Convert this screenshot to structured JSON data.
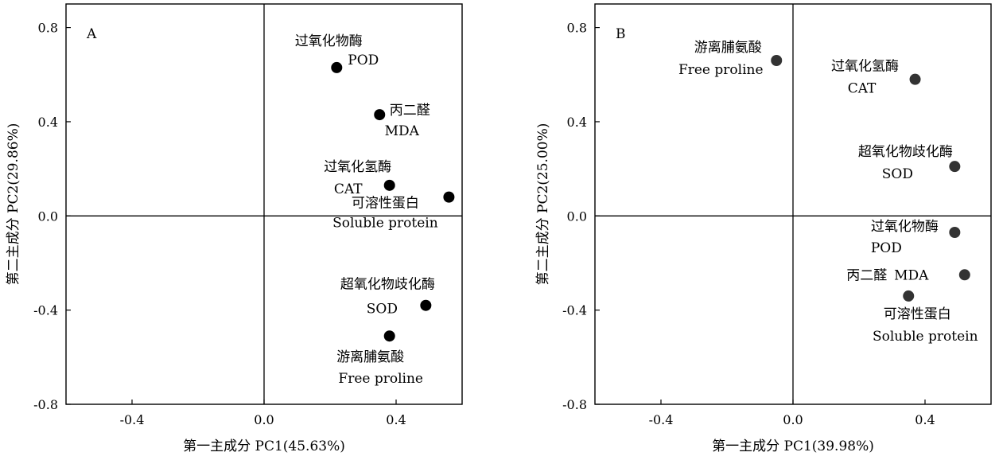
{
  "chart_data": [
    {
      "type": "scatter",
      "panel_label": "A",
      "xlabel": "第一主成分  PC1(45.63%)",
      "ylabel": "第二主成分  PC2(29.86%)",
      "xlim": [
        -0.6,
        0.6
      ],
      "ylim": [
        -0.8,
        0.9
      ],
      "xticks": [
        -0.4,
        0.0,
        0.4
      ],
      "xtick_labels": [
        "-0.4",
        "0.0",
        "0.4"
      ],
      "yticks": [
        -0.8,
        -0.4,
        0.0,
        0.4,
        0.8
      ],
      "ytick_labels": [
        "-0.8",
        "-0.4",
        "0.0",
        "0.4",
        "0.8"
      ],
      "point_color": "#000000",
      "points": [
        {
          "x": 0.22,
          "y": 0.63,
          "label_cn": "过氧化物酶",
          "label_en": "POD"
        },
        {
          "x": 0.35,
          "y": 0.43,
          "label_cn": "丙二醛",
          "label_en": "MDA"
        },
        {
          "x": 0.38,
          "y": 0.13,
          "label_cn": "过氧化氢酶",
          "label_en": "CAT"
        },
        {
          "x": 0.56,
          "y": 0.08,
          "label_cn": "可溶性蛋白",
          "label_en": "Soluble protein"
        },
        {
          "x": 0.49,
          "y": -0.38,
          "label_cn": "超氧化物歧化酶",
          "label_en": "SOD"
        },
        {
          "x": 0.38,
          "y": -0.51,
          "label_cn": "游离脯氨酸",
          "label_en": "Free proline"
        }
      ]
    },
    {
      "type": "scatter",
      "panel_label": "B",
      "xlabel": "第一主成分  PC1(39.98%)",
      "ylabel": "第二主成分  PC2(25.00%)",
      "xlim": [
        -0.6,
        0.6
      ],
      "ylim": [
        -0.8,
        0.9
      ],
      "xticks": [
        -0.4,
        0.0,
        0.4
      ],
      "xtick_labels": [
        "-0.4",
        "0.0",
        "0.4"
      ],
      "yticks": [
        -0.8,
        -0.4,
        0.0,
        0.4,
        0.8
      ],
      "ytick_labels": [
        "-0.8",
        "-0.4",
        "0.0",
        "0.4",
        "0.8"
      ],
      "point_color": "#333333",
      "points": [
        {
          "x": -0.05,
          "y": 0.66,
          "label_cn": "游离脯氨酸",
          "label_en": "Free proline"
        },
        {
          "x": 0.37,
          "y": 0.58,
          "label_cn": "过氧化氢酶",
          "label_en": "CAT"
        },
        {
          "x": 0.49,
          "y": 0.21,
          "label_cn": "超氧化物歧化酶",
          "label_en": "SOD"
        },
        {
          "x": 0.49,
          "y": -0.07,
          "label_cn": "过氧化物酶",
          "label_en": "POD"
        },
        {
          "x": 0.52,
          "y": -0.25,
          "label_cn": "丙二醛",
          "label_en": "MDA"
        },
        {
          "x": 0.35,
          "y": -0.34,
          "label_cn": "可溶性蛋白",
          "label_en": "Soluble protein"
        }
      ]
    }
  ]
}
